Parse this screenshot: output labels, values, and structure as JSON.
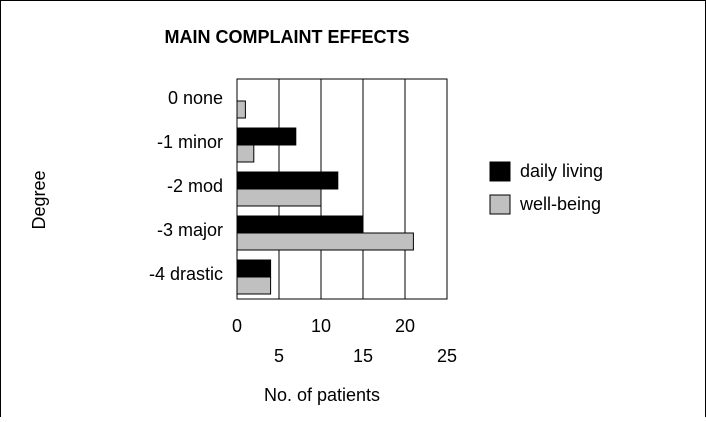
{
  "chart_data": {
    "type": "bar",
    "orientation": "horizontal",
    "title": "MAIN COMPLAINT EFFECTS",
    "categories": [
      "0 none",
      "-1 minor",
      "-2 mod",
      "-3 major",
      "-4 drastic"
    ],
    "series": [
      {
        "name": "daily living",
        "color": "#000000",
        "values": [
          0,
          7,
          12,
          15,
          4
        ]
      },
      {
        "name": "well-being",
        "color": "#c0c0c0",
        "values": [
          1,
          2,
          10,
          21,
          4
        ]
      }
    ],
    "xlabel": "No. of patients",
    "ylabel": "Degree",
    "xlim": [
      0,
      25
    ],
    "xticks": [
      0,
      5,
      10,
      15,
      20,
      25
    ],
    "grid": true,
    "legend": "right"
  }
}
